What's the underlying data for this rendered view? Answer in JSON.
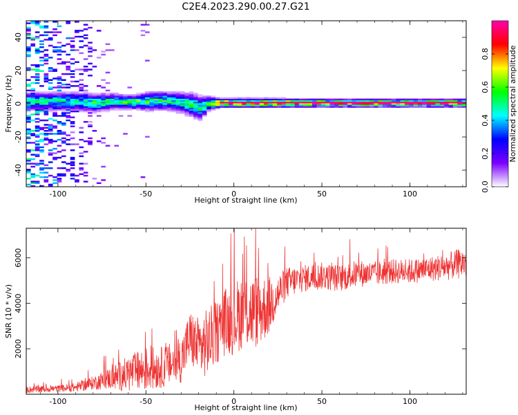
{
  "figure": {
    "title": "C2E4.2023.290.00.27.G21"
  },
  "chart_data": [
    {
      "type": "heatmap",
      "xlabel": "Height of straight line (km)",
      "ylabel": "Frequency (Hz)",
      "xlim": [
        -118,
        132
      ],
      "ylim": [
        -50,
        50
      ],
      "xticks": [
        -100,
        -50,
        0,
        50,
        100
      ],
      "yticks": [
        -40,
        -20,
        0,
        20,
        40
      ],
      "xtick_labels": [
        "-100",
        "-50",
        "0",
        "50",
        "100"
      ],
      "ytick_labels": [
        "-40",
        "-20",
        "0",
        "20",
        "40"
      ],
      "grid": false,
      "colorbar": {
        "label": "Normalized spectral amplitude",
        "range": [
          0,
          1
        ],
        "ticks": [
          0.0,
          0.2,
          0.4,
          0.6,
          0.8
        ],
        "tick_labels": [
          "0.0",
          "0.2",
          "0.4",
          "0.6",
          "0.8"
        ],
        "stops": [
          "#ffffff",
          "#7b00ff",
          "#0000ff",
          "#00ffff",
          "#00ff00",
          "#ffff00",
          "#ff0000",
          "#ff00aa"
        ]
      },
      "ridge": {
        "x": [
          -100,
          -90,
          -80,
          -70,
          -60,
          -50,
          -40,
          -30,
          -25,
          -20,
          -15,
          -10,
          0,
          20,
          50,
          100,
          132
        ],
        "center_freq": [
          1,
          1,
          0,
          1,
          0.5,
          1,
          1.5,
          0,
          -1,
          -3,
          0,
          0,
          0,
          0,
          0,
          0,
          0
        ],
        "half_width": [
          4,
          4,
          4,
          3.5,
          3,
          4,
          4,
          4.5,
          5,
          5,
          3,
          2,
          2,
          2,
          1.8,
          1.8,
          1.8
        ],
        "peak_amplitude": [
          0.45,
          0.45,
          0.5,
          0.5,
          0.55,
          0.55,
          0.5,
          0.5,
          0.55,
          0.5,
          0.6,
          0.9,
          0.9,
          0.9,
          0.9,
          0.9,
          0.9
        ]
      },
      "noise_region": {
        "x_range": [
          -118,
          -73
        ],
        "description_amplitude": 0.3
      }
    },
    {
      "type": "line",
      "xlabel": "Height of straight line (km)",
      "ylabel": "SNR (10 * v/v)",
      "xlim": [
        -118,
        132
      ],
      "ylim": [
        0,
        7300
      ],
      "xticks": [
        -100,
        -50,
        0,
        50,
        100
      ],
      "yticks": [
        2000,
        4000,
        6000
      ],
      "xtick_labels": [
        "-100",
        "-50",
        "0",
        "50",
        "100"
      ],
      "ytick_labels": [
        "2000",
        "4000",
        "6000"
      ],
      "grid": false,
      "color": "#ee3333",
      "envelope": {
        "x": [
          -118,
          -100,
          -90,
          -80,
          -70,
          -60,
          -50,
          -40,
          -30,
          -25,
          -20,
          -15,
          -10,
          -5,
          0,
          5,
          10,
          15,
          20,
          25,
          30,
          40,
          50,
          60,
          70,
          80,
          90,
          100,
          110,
          120,
          132
        ],
        "mean": [
          200,
          250,
          300,
          500,
          700,
          900,
          1100,
          1200,
          1500,
          2500,
          2000,
          2300,
          2700,
          3200,
          3300,
          3700,
          3600,
          3700,
          3900,
          4400,
          4900,
          5100,
          5200,
          5100,
          5300,
          5300,
          5400,
          5400,
          5500,
          5600,
          5800
        ],
        "spread": [
          150,
          150,
          200,
          300,
          500,
          800,
          1000,
          900,
          1000,
          1200,
          1400,
          1500,
          1400,
          1500,
          1600,
          1700,
          1700,
          1600,
          1300,
          900,
          700,
          600,
          600,
          600,
          600,
          550,
          550,
          550,
          550,
          600,
          700
        ]
      }
    }
  ]
}
